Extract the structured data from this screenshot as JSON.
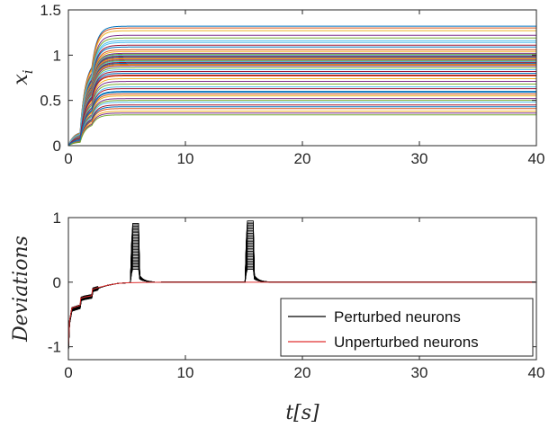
{
  "chart_data": [
    {
      "type": "line",
      "ylabel": "x_i",
      "xlabel": "",
      "xlim": [
        0,
        40
      ],
      "ylim": [
        0,
        1.5
      ],
      "xticks": [
        "0",
        "10",
        "20",
        "30",
        "40"
      ],
      "yticks": [
        "0",
        "0.5",
        "1",
        "1.5"
      ],
      "grid": false,
      "series_count": 50,
      "time_constant": 0.45,
      "step_times": [
        0,
        1,
        2
      ],
      "step_fractions": [
        0.12,
        0.72,
        1.0
      ],
      "steady_state_values": [
        1.32,
        1.3,
        1.27,
        1.22,
        1.19,
        1.14,
        1.11,
        1.09,
        1.06,
        1.04,
        1.02,
        1.01,
        1.0,
        0.99,
        0.98,
        0.97,
        0.96,
        0.95,
        0.94,
        0.93,
        0.92,
        0.91,
        0.9,
        0.89,
        0.88,
        0.86,
        0.84,
        0.82,
        0.8,
        0.77,
        0.74,
        0.71,
        0.68,
        0.65,
        0.63,
        0.6,
        0.57,
        0.55,
        0.52,
        0.5,
        0.48,
        0.45,
        0.43,
        0.41,
        0.38,
        0.36,
        0.34,
        1.16,
        0.78,
        0.59
      ],
      "colors": [
        "#0072BD",
        "#D95319",
        "#EDB120",
        "#7E2F8E",
        "#77AC30",
        "#4DBEEE",
        "#A2142F"
      ]
    },
    {
      "type": "line",
      "ylabel": "Deviations",
      "xlabel": "t[s]",
      "xlim": [
        0,
        40
      ],
      "ylim": [
        -1.2,
        1
      ],
      "xticks": [
        "0",
        "10",
        "20",
        "30",
        "40"
      ],
      "yticks": [
        "-1",
        "0",
        "1"
      ],
      "grid": false,
      "legend": {
        "position": "bottom-right",
        "entries": [
          {
            "label": "Perturbed neurons",
            "color": "#000000"
          },
          {
            "label": "Unperturbed neurons",
            "color": "#e03030"
          }
        ]
      },
      "series": [
        {
          "name": "Perturbed neurons",
          "color": "#000000",
          "baseline": {
            "x": [
              0,
              0.1,
              0.3,
              1.0,
              1.05,
              1.4,
              2.0,
              2.05,
              2.6,
              3.3,
              4.2,
              5.0,
              6.5,
              8,
              10,
              14,
              17,
              20,
              25,
              40
            ],
            "y": [
              -1.05,
              -0.62,
              -0.42,
              -0.38,
              -0.26,
              -0.24,
              -0.22,
              -0.12,
              -0.09,
              -0.05,
              -0.02,
              -0.01,
              -0.005,
              0,
              0,
              0,
              0,
              0,
              0,
              0
            ]
          },
          "pulses": [
            {
              "start": 5.3,
              "end": 6.0,
              "peak_min": 0.2,
              "peak_max": 0.91
            },
            {
              "start": 15.1,
              "end": 15.8,
              "peak_min": 0.2,
              "peak_max": 0.95
            }
          ],
          "pulse_count": 36
        },
        {
          "name": "Unperturbed neurons",
          "color": "#e03030",
          "x": [
            0,
            0.1,
            0.3,
            1.0,
            1.05,
            1.4,
            2.0,
            2.05,
            2.6,
            3.3,
            4.2,
            5.0,
            6.5,
            8,
            10,
            14,
            17,
            20,
            25,
            40
          ],
          "y": [
            -1.0,
            -0.6,
            -0.4,
            -0.36,
            -0.25,
            -0.23,
            -0.21,
            -0.11,
            -0.08,
            -0.05,
            -0.02,
            -0.01,
            -0.005,
            0,
            0,
            0,
            0,
            0,
            0,
            0
          ]
        }
      ]
    }
  ]
}
